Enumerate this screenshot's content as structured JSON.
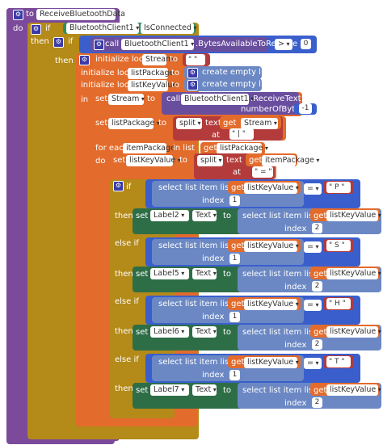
{
  "colors": {
    "procedure": "#7b4a9a",
    "control": "#b48a18",
    "component": "#2f8f5b",
    "method": "#6a4e9e",
    "variable": "#e36b2b",
    "list": "#6b88c4",
    "text": "#b43b3b",
    "math": "#3a5fcd",
    "setter": "#2e6e47"
  },
  "procedure": {
    "to": "to",
    "name": "ReceiveBluetoothData",
    "do": "do"
  },
  "if1": {
    "if": "if",
    "then": "then",
    "component": "BluetoothClient1",
    "property": "IsConnected"
  },
  "if2": {
    "if": "if",
    "then": "then",
    "call": "call",
    "component": "BluetoothClient1",
    "method": ".BytesAvailableToReceive",
    "op": ">",
    "value": "0"
  },
  "locals": {
    "init": "initialize local",
    "to": "to",
    "v1": "Stream",
    "v2": "listPackage",
    "v3": "listKeyValue",
    "empty": "\" \"",
    "create_empty_list": "create empty list",
    "in": "in"
  },
  "setStream": {
    "set": "set",
    "var": "Stream",
    "to": "to",
    "call": "call",
    "component": "BluetoothClient1",
    "method": ".ReceiveText",
    "param": "numberOfBytes",
    "value": "-1"
  },
  "setPackage": {
    "set": "set",
    "var": "listPackage",
    "to": "to",
    "split": "split",
    "text": "text",
    "get": "get",
    "getvar": "Stream",
    "at": "at",
    "sep": "\" | \""
  },
  "foreach": {
    "for_each": "for each",
    "item": "itemPackage",
    "in_list": "in list",
    "get": "get",
    "list": "listPackage",
    "do": "do"
  },
  "setKeyValue": {
    "set": "set",
    "var": "listKeyValue",
    "to": "to",
    "split": "split",
    "text": "text",
    "get": "get",
    "getvar": "itemPackage",
    "at": "at",
    "sep": "\" = \""
  },
  "ifchain": {
    "if": "if",
    "elseif": "else if",
    "then": "then",
    "select": "select list item  list",
    "get": "get",
    "list": "listKeyValue",
    "index": "index",
    "eq": "=",
    "set": "set",
    "to": "to",
    "prop": "Text",
    "branches": [
      {
        "key": "\" P \"",
        "label": "Label2",
        "idx1": "1",
        "idx2": "2"
      },
      {
        "key": "\" S \"",
        "label": "Label5",
        "idx1": "1",
        "idx2": "2"
      },
      {
        "key": "\" H \"",
        "label": "Label6",
        "idx1": "1",
        "idx2": "2"
      },
      {
        "key": "\" T \"",
        "label": "Label7",
        "idx1": "1",
        "idx2": "2"
      }
    ]
  }
}
